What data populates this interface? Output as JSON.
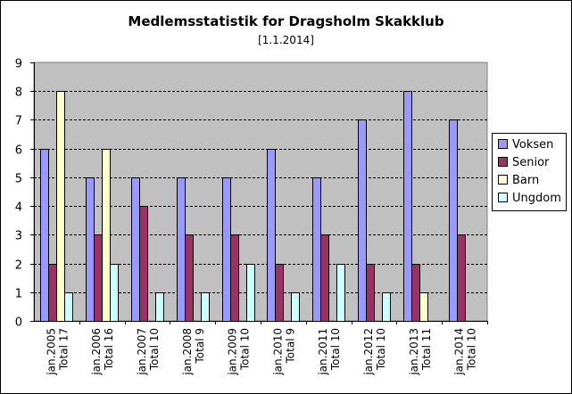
{
  "chart_data": {
    "type": "bar",
    "title": "Medlemsstatistik for Dragsholm Skakklub",
    "subtitle": "[1.1.2014]",
    "categories": [
      {
        "line1": "jan.2005",
        "line2": "Total 17"
      },
      {
        "line1": "jan.2006",
        "line2": "Total 16"
      },
      {
        "line1": "jan.2007",
        "line2": "Total 10"
      },
      {
        "line1": "jan.2008",
        "line2": "Total 9"
      },
      {
        "line1": "jan.2009",
        "line2": "Total 10"
      },
      {
        "line1": "jan.2010",
        "line2": "Total 9"
      },
      {
        "line1": "jan.2011",
        "line2": "Total 10"
      },
      {
        "line1": "jan.2012",
        "line2": "Total 10"
      },
      {
        "line1": "jan.2013",
        "line2": "Total 11"
      },
      {
        "line1": "jan.2014",
        "line2": "Total 10"
      }
    ],
    "series": [
      {
        "name": "Voksen",
        "color": "#9999ff",
        "values": [
          6,
          5,
          5,
          5,
          5,
          6,
          5,
          7,
          8,
          7
        ]
      },
      {
        "name": "Senior",
        "color": "#993366",
        "values": [
          2,
          3,
          4,
          3,
          3,
          2,
          3,
          2,
          2,
          3
        ]
      },
      {
        "name": "Barn",
        "color": "#ffffcc",
        "values": [
          8,
          6,
          0,
          0,
          0,
          0,
          0,
          0,
          1,
          0
        ]
      },
      {
        "name": "Ungdom",
        "color": "#ccffff",
        "values": [
          1,
          2,
          1,
          1,
          2,
          1,
          2,
          1,
          0,
          0
        ]
      }
    ],
    "ylim": [
      0,
      9
    ],
    "yticks": [
      0,
      1,
      2,
      3,
      4,
      5,
      6,
      7,
      8,
      9
    ],
    "grid": true,
    "plot_background": "#c0c0c0",
    "legend_position": "right"
  }
}
